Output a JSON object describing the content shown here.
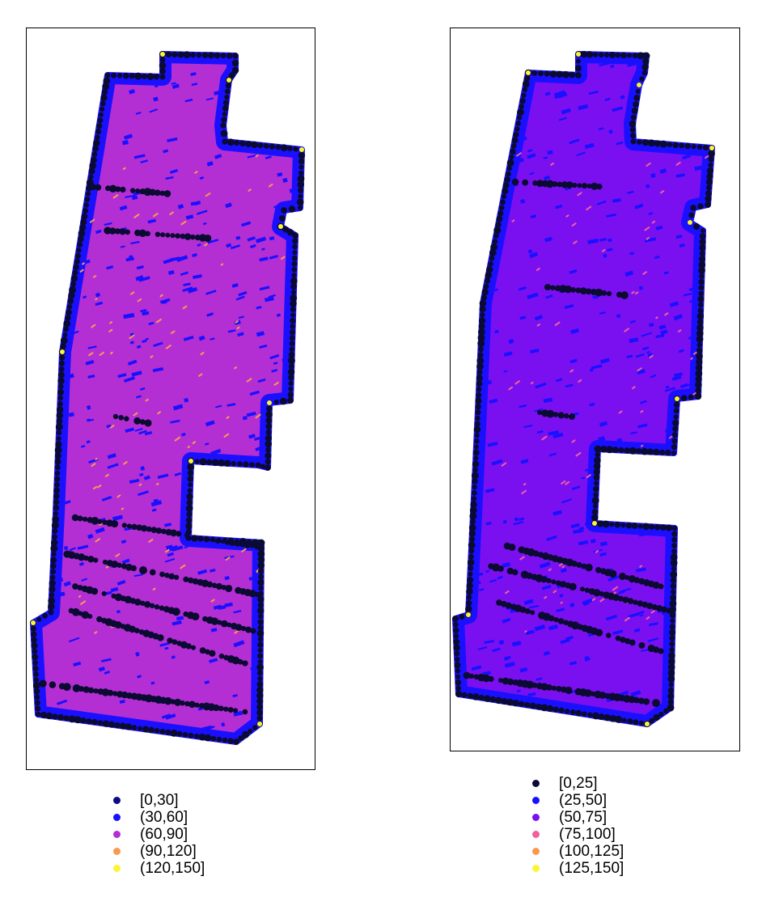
{
  "maps": [
    {
      "id": "left",
      "legend": {
        "items": [
          {
            "label": "[0,30]",
            "color": "#0d0887"
          },
          {
            "label": "(30,60]",
            "color": "#1a10ff"
          },
          {
            "label": "(60,90]",
            "color": "#b42fd3"
          },
          {
            "label": "(90,120]",
            "color": "#f89a4f"
          },
          {
            "label": "(120,150]",
            "color": "#fcf43a"
          }
        ]
      },
      "palette": {
        "dark": "#0a0a32",
        "blue": "#1a10ff",
        "fill": "#b42fd3",
        "accent": "#f89a4f",
        "bright": "#fcf43a"
      }
    },
    {
      "id": "right",
      "legend": {
        "items": [
          {
            "label": "[0,25]",
            "color": "#0a0a32"
          },
          {
            "label": "(25,50]",
            "color": "#1a10ff"
          },
          {
            "label": "(50,75]",
            "color": "#7a10f0"
          },
          {
            "label": "(75,100]",
            "color": "#f0609a"
          },
          {
            "label": "(100,125]",
            "color": "#f89a4f"
          },
          {
            "label": "(125,150]",
            "color": "#fcf43a"
          }
        ]
      },
      "palette": {
        "dark": "#0a0a32",
        "blue": "#1a10ff",
        "fill": "#7a10f0",
        "accent": "#f0609a",
        "bright": "#fcf43a"
      }
    }
  ]
}
